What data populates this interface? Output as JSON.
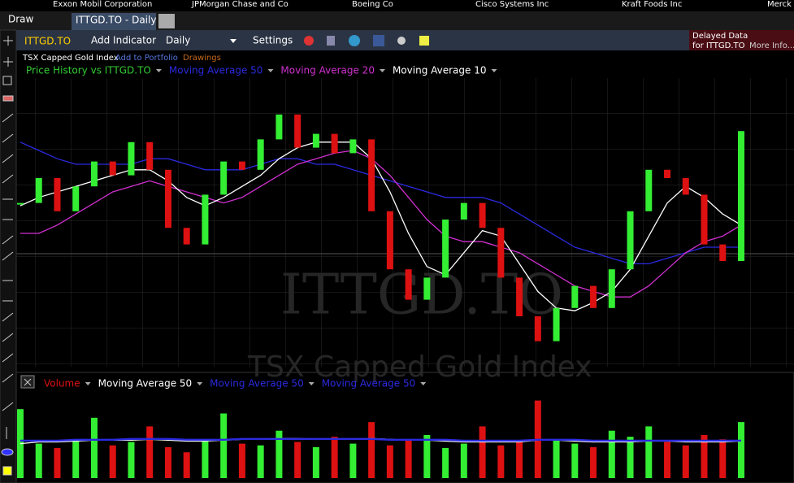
{
  "tickers": [
    "Exxon Mobil Corporation",
    "JPMorgan Chase and Co",
    "Boeing Co",
    "Cisco Systems Inc",
    "Kraft Foods Inc",
    "Merck"
  ],
  "draw_menu": "Draw",
  "tab": "ITTGD.TO - Daily",
  "toolbar": {
    "symbol": "ITTGD.TO",
    "add_indicator": "Add Indicator",
    "period": "Daily",
    "settings": "Settings",
    "delayed": "Delayed Data",
    "delayed_for": "for ITTGD.TO",
    "more_info": "More Info..."
  },
  "subtitle": {
    "name": "TSX Capped Gold Index",
    "add": "Add to Portfolio",
    "drawings": "Drawings"
  },
  "watermark": {
    "symbol": "ITTGD.TO",
    "name": "TSX Capped Gold Index"
  },
  "chart_data": [
    {
      "type": "candlestick",
      "up_color": "#33ee33",
      "down_color": "#dd1111",
      "ylim": [
        0,
        100
      ],
      "series": [
        {
          "name": "Price History vs ITTGD.TO",
          "color": "#33cc33",
          "values": [
            56,
            65,
            53,
            62,
            71,
            66,
            78,
            68,
            47,
            41,
            59,
            71,
            68,
            79,
            88,
            76,
            81,
            74,
            79,
            53,
            32,
            21,
            29,
            50,
            56,
            47,
            29,
            15,
            6,
            18,
            26,
            18,
            32,
            53,
            68,
            65,
            59,
            41,
            35,
            82
          ]
        },
        {
          "name": "Moving Average 50",
          "color": "#2a2ae0",
          "values": [
            78,
            75,
            72,
            70,
            70,
            70,
            70,
            72,
            72,
            70,
            68,
            68,
            68,
            70,
            72,
            72,
            70,
            70,
            68,
            66,
            64,
            62,
            60,
            58,
            58,
            58,
            56,
            52,
            48,
            44,
            40,
            38,
            36,
            34,
            34,
            36,
            38,
            40,
            40,
            40
          ]
        },
        {
          "name": "Moving Average 20",
          "color": "#d030d0",
          "values": [
            45,
            45,
            48,
            52,
            56,
            60,
            62,
            64,
            62,
            60,
            58,
            56,
            58,
            62,
            66,
            70,
            72,
            74,
            75,
            72,
            66,
            58,
            50,
            44,
            42,
            42,
            40,
            38,
            34,
            30,
            26,
            24,
            22,
            22,
            26,
            32,
            38,
            42,
            44,
            48
          ]
        },
        {
          "name": "Moving Average 10",
          "color": "#ffffff",
          "values": [
            55,
            58,
            60,
            62,
            64,
            66,
            68,
            68,
            64,
            58,
            55,
            58,
            62,
            66,
            72,
            76,
            78,
            78,
            78,
            72,
            60,
            45,
            33,
            30,
            38,
            46,
            44,
            34,
            24,
            18,
            17,
            20,
            24,
            32,
            44,
            56,
            62,
            58,
            52,
            48
          ]
        }
      ]
    },
    {
      "type": "bar",
      "up_color": "#33ee33",
      "down_color": "#dd1111",
      "ylim": [
        0,
        100
      ],
      "series": [
        {
          "name": "Volume",
          "color": "#dd1111",
          "values": [
            80,
            40,
            35,
            45,
            70,
            38,
            42,
            60,
            36,
            30,
            44,
            75,
            40,
            38,
            55,
            42,
            36,
            48,
            40,
            65,
            38,
            44,
            50,
            35,
            40,
            60,
            38,
            42,
            90,
            45,
            40,
            36,
            55,
            48,
            60,
            42,
            38,
            50,
            45,
            65
          ]
        },
        {
          "name": "Moving Average 50",
          "color": "#ffffff",
          "values": [
            40,
            42,
            42,
            43,
            44,
            44,
            44,
            45,
            44,
            43,
            43,
            44,
            45,
            45,
            46,
            46,
            45,
            45,
            45,
            46,
            45,
            44,
            44,
            43,
            42,
            42,
            42,
            42,
            44,
            44,
            43,
            42,
            42,
            42,
            43,
            43,
            42,
            42,
            42,
            43
          ]
        },
        {
          "name": "Moving Average 50",
          "color": "#2a2ae0",
          "values": [
            44,
            44,
            44,
            45,
            45,
            45,
            46,
            46,
            46,
            45,
            45,
            45,
            46,
            46,
            46,
            46,
            46,
            46,
            46,
            46,
            45,
            45,
            45,
            45,
            44,
            44,
            44,
            44,
            45,
            45,
            45,
            44,
            44,
            44,
            44,
            44,
            44,
            44,
            44,
            44
          ]
        },
        {
          "name": "Moving Average 50",
          "color": "#2a2ae0",
          "values": [
            43,
            43,
            43,
            44,
            44,
            44,
            45,
            45,
            45,
            44,
            44,
            44,
            45,
            45,
            45,
            45,
            45,
            45,
            45,
            45,
            44,
            44,
            44,
            44,
            43,
            43,
            43,
            43,
            44,
            44,
            44,
            43,
            43,
            43,
            43,
            43,
            43,
            43,
            43,
            43
          ]
        }
      ]
    }
  ]
}
